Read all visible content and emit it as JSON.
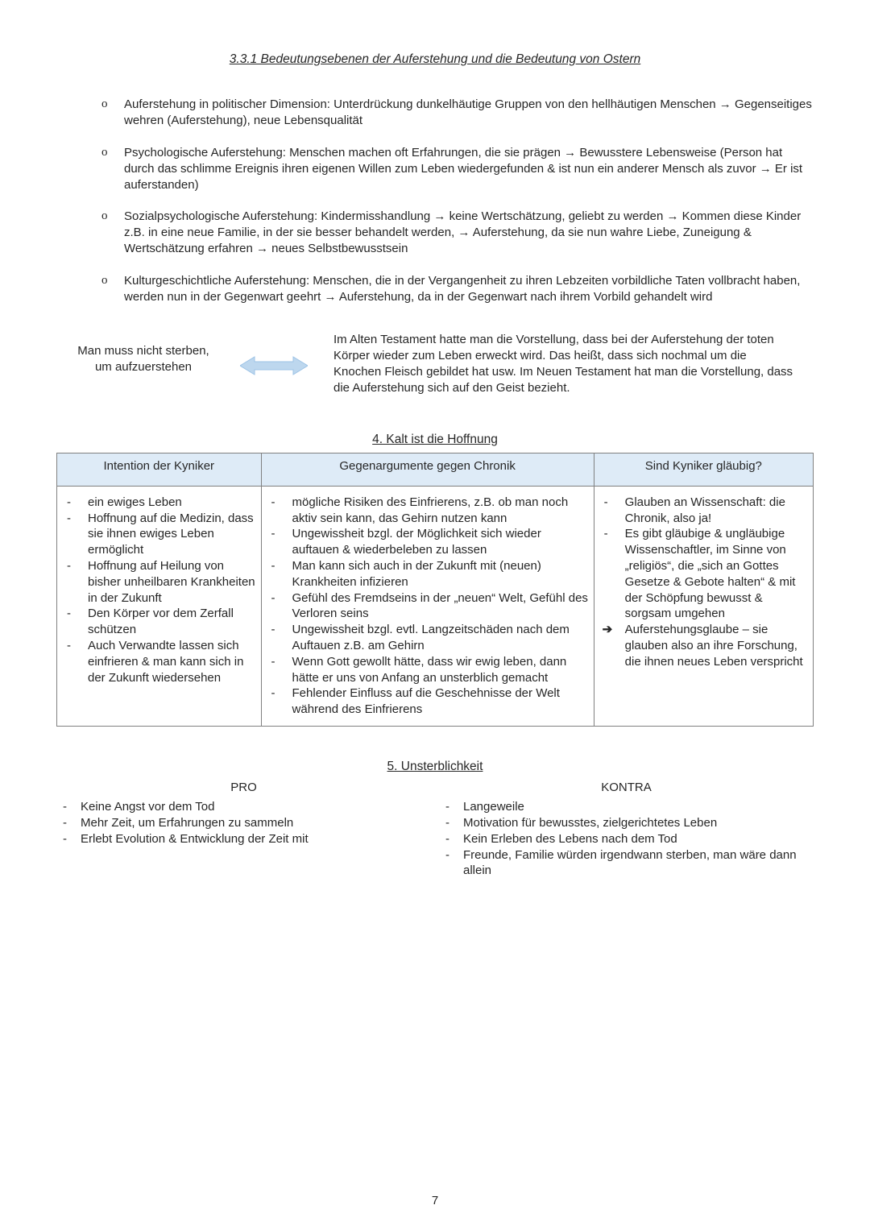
{
  "page_number": "7",
  "section_title": "3.3.1 Bedeutungsebenen der Auferstehung und die Bedeutung von Ostern",
  "olist": [
    "Auferstehung in politischer Dimension: Unterdrückung dunkelhäutige Gruppen von den hellhäutigen Menschen → Gegenseitiges wehren (Auferstehung), neue Lebensqualität",
    "Psychologische Auferstehung: Menschen machen oft Erfahrungen, die sie prägen → Bewusstere Lebensweise (Person hat durch das schlimme Ereignis ihren eigenen Willen zum Leben wiedergefunden & ist nun ein anderer Mensch als zuvor → Er ist auferstanden)",
    "Sozialpsychologische Auferstehung: Kindermisshandlung → keine Wertschätzung, geliebt zu werden → Kommen diese Kinder z.B. in eine neue Familie, in der sie besser behandelt werden, → Auferstehung, da sie nun wahre Liebe, Zuneigung & Wertschätzung erfahren → neues Selbstbewusstsein",
    "Kulturgeschichtliche Auferstehung: Menschen, die in der Vergangenheit zu ihren Lebzeiten vorbildliche Taten vollbracht haben, werden nun in der Gegenwart geehrt → Auferstehung, da in der Gegenwart nach ihrem Vorbild gehandelt wird"
  ],
  "arrow_left": "Man muss nicht sterben, um aufzuerstehen",
  "arrow_right": "Im Alten Testament hatte man die Vorstellung, dass bei der Auferstehung der toten Körper wieder zum Leben erweckt wird. Das heißt, dass sich nochmal um die Knochen Fleisch gebildet hat usw. Im Neuen Testament hat man die Vorstellung, dass die Auferstehung sich auf den Geist bezieht.",
  "arrow_color_fill": "#bdd7ee",
  "arrow_color_stroke": "#9dc3e6",
  "heading4": "4. Kalt ist die Hoffnung",
  "table": {
    "headers": [
      "Intention der Kyniker",
      "Gegenargumente gegen Chronik",
      "Sind Kyniker gläubig?"
    ],
    "col_widths": [
      "27%",
      "44%",
      "29%"
    ],
    "col1": [
      "ein ewiges Leben",
      "Hoffnung auf die Medizin, dass sie ihnen ewiges Leben ermöglicht",
      "Hoffnung auf Heilung von bisher unheilbaren Krankheiten in der Zukunft",
      "Den Körper vor dem Zerfall schützen",
      "Auch Verwandte lassen sich einfrieren & man kann sich in der Zukunft wiedersehen"
    ],
    "col2": [
      "mögliche Risiken des Einfrierens, z.B. ob man noch aktiv sein kann, das Gehirn nutzen kann",
      "Ungewissheit bzgl. der Möglichkeit sich wieder auftauen & wiederbeleben zu lassen",
      "Man kann sich auch in der Zukunft mit (neuen) Krankheiten infizieren",
      "Gefühl des Fremdseins in der „neuen“ Welt, Gefühl des Verloren seins",
      "Ungewissheit bzgl. evtl. Langzeitschäden nach dem Auftauen z.B. am Gehirn",
      "Wenn Gott gewollt hätte, dass wir ewig leben, dann hätte er uns von Anfang an unsterblich gemacht",
      "Fehlender Einfluss auf die Geschehnisse der Welt während des Einfrierens"
    ],
    "col3": [
      {
        "t": "Glauben an Wissenschaft: die Chronik, also ja!",
        "b": "-"
      },
      {
        "t": "Es gibt gläubige & ungläubige Wissenschaftler, im Sinne von „religiös“, die „sich an Gottes Gesetze & Gebote halten“ & mit der Schöpfung bewusst & sorgsam umgehen",
        "b": "-"
      },
      {
        "t": " Auferstehungsglaube – sie glauben also an ihre Forschung, die ihnen neues Leben verspricht",
        "b": "a"
      }
    ]
  },
  "heading5": "5. Unsterblichkeit",
  "pro_label": "PRO",
  "kontra_label": "KONTRA",
  "pro": [
    "Keine Angst vor dem Tod",
    "Mehr Zeit, um Erfahrungen zu sammeln",
    "Erlebt Evolution & Entwicklung der Zeit mit"
  ],
  "kontra": [
    "Langeweile",
    "Motivation für bewusstes, zielgerichtetes Leben",
    "Kein Erleben des Lebens nach dem Tod",
    "Freunde, Familie würden irgendwann sterben, man wäre dann allein"
  ]
}
